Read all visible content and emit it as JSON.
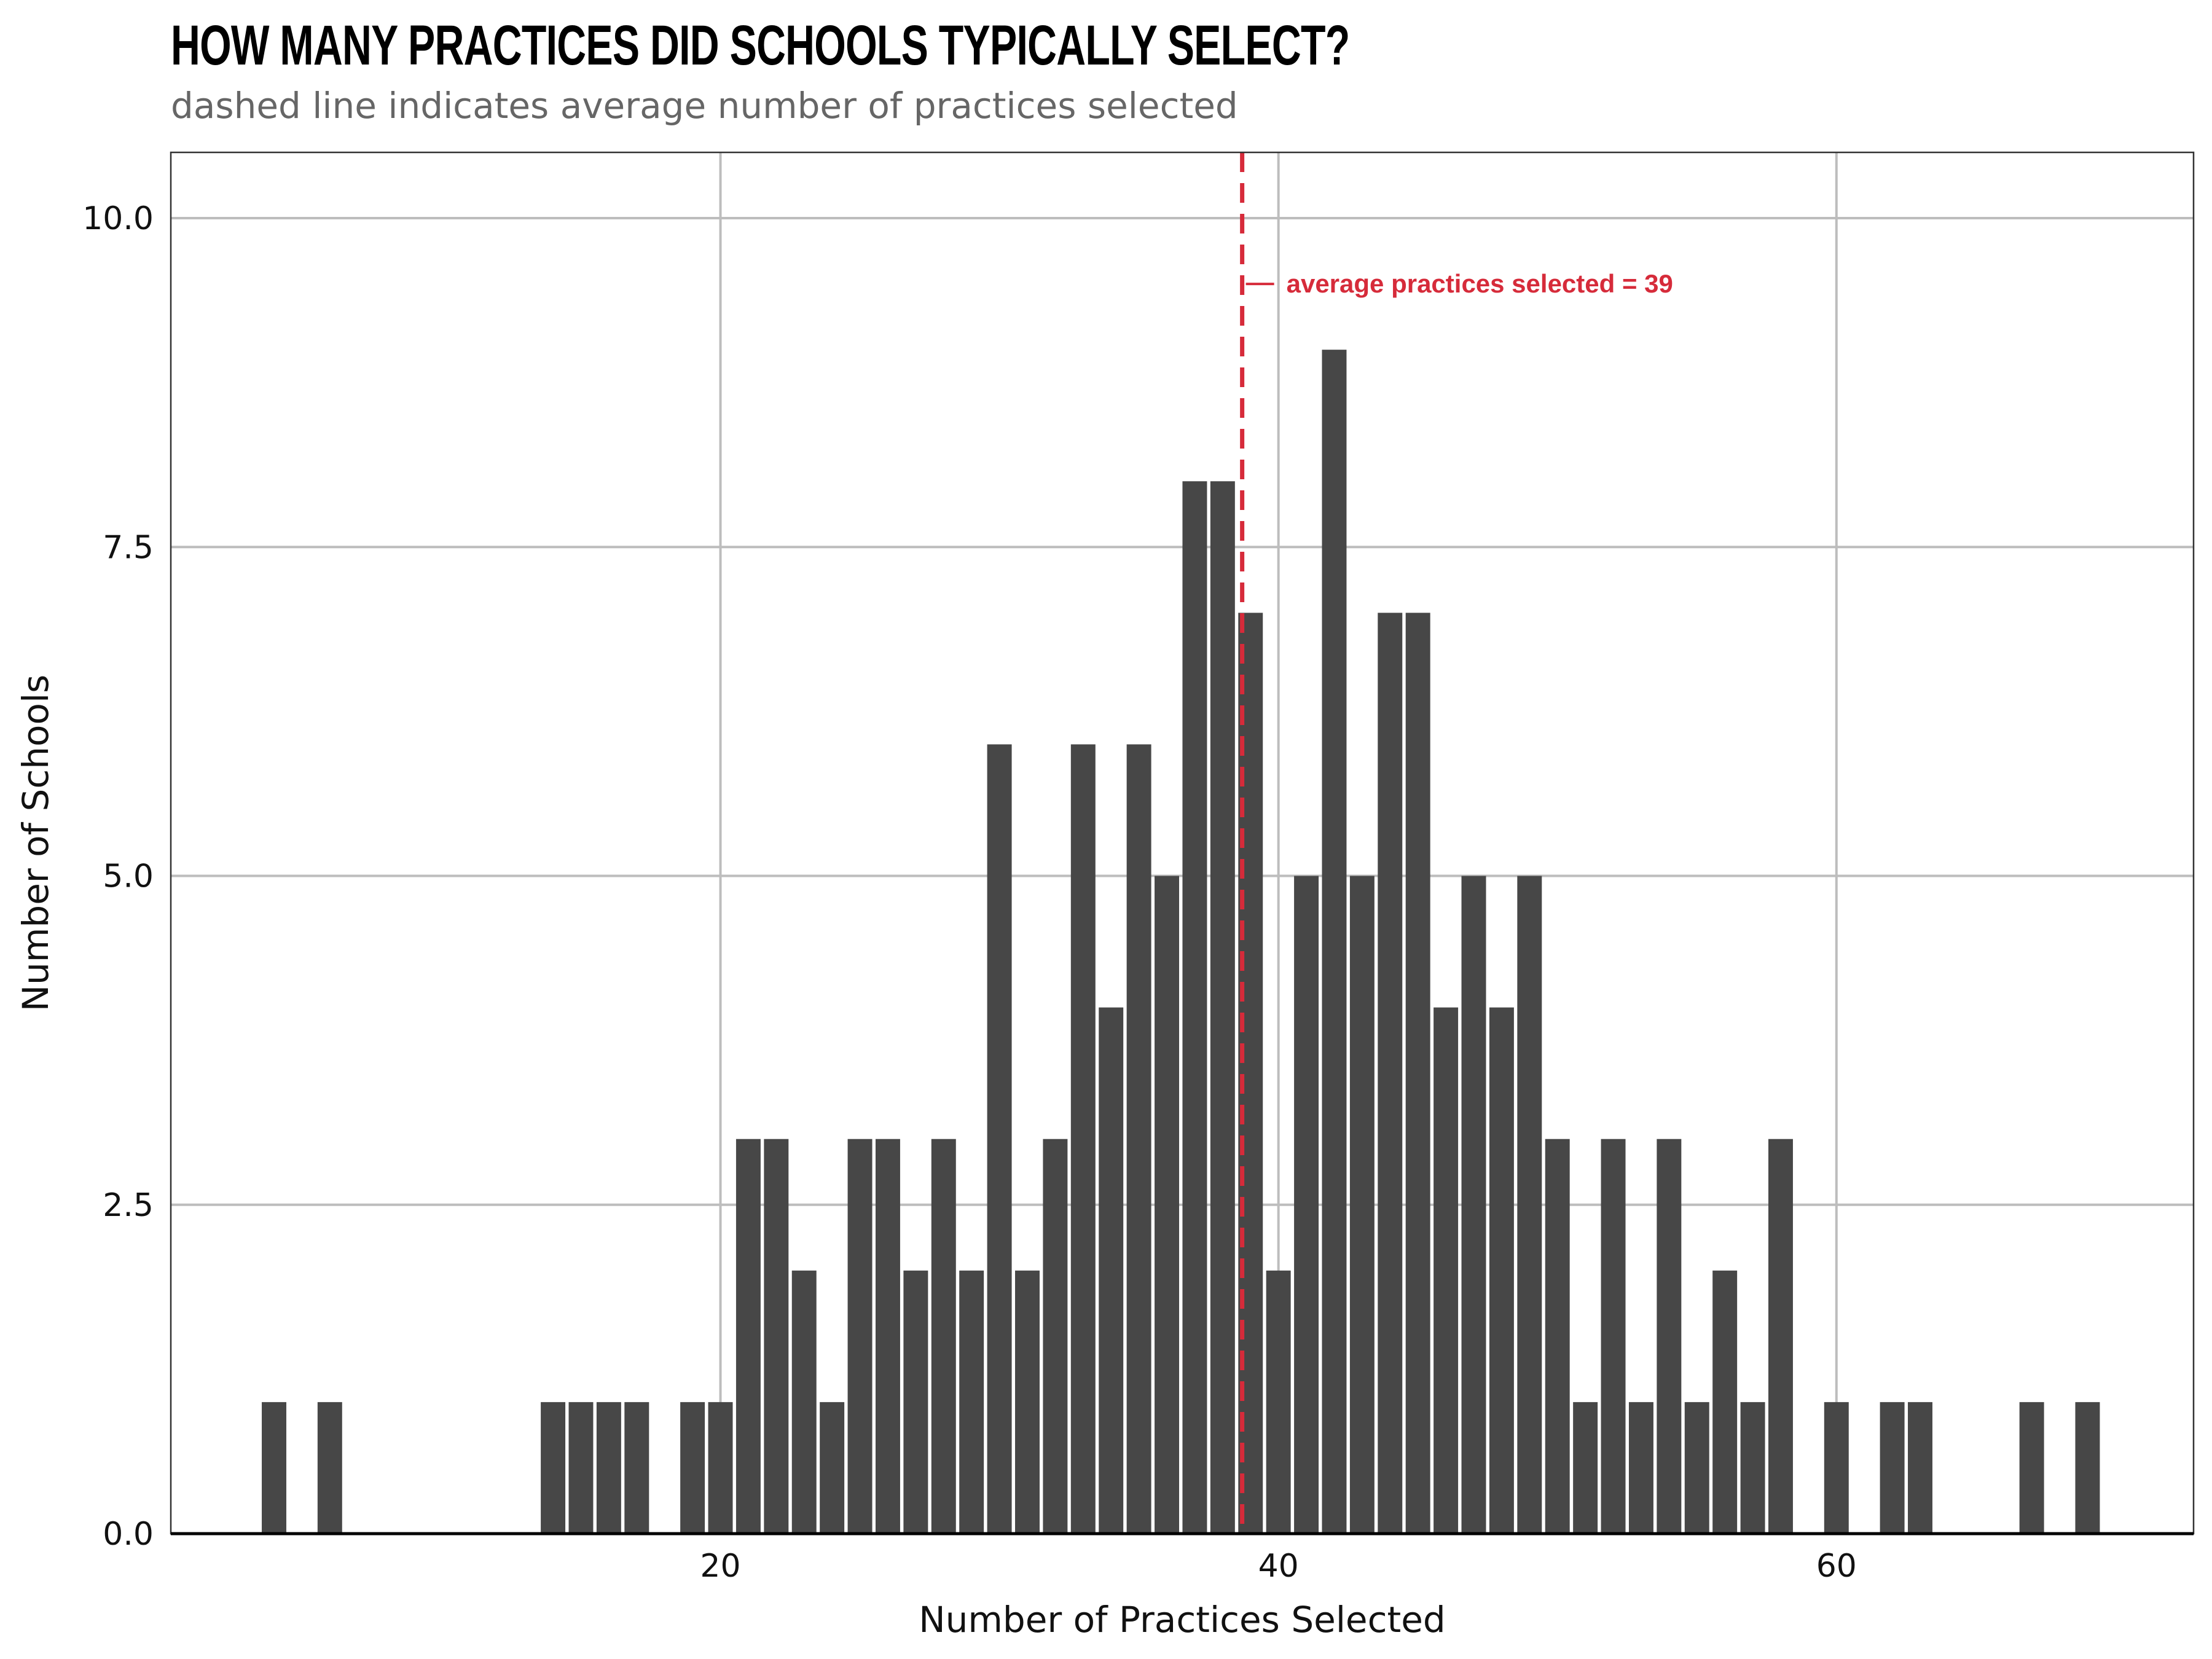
{
  "chart_data": {
    "type": "bar",
    "title": "HOW MANY PRACTICES DID SCHOOLS TYPICALLY SELECT?",
    "subtitle": "dashed line indicates average number of practices selected",
    "xlabel": "Number of Practices Selected",
    "ylabel": "Number of Schools",
    "xlim": [
      0.3,
      72.8
    ],
    "ylim": [
      0,
      10.5
    ],
    "x_ticks": [
      20,
      40,
      60
    ],
    "y_ticks": [
      0,
      2.5,
      5,
      7.5,
      10
    ],
    "y_tick_labels": [
      "0.0",
      "2.5",
      "5.0",
      "7.5",
      "10.0"
    ],
    "grid": true,
    "bar_color": "#474747",
    "series": [
      {
        "x": [
          4,
          6,
          14,
          15,
          16,
          17,
          19,
          20,
          21,
          22,
          23,
          24,
          25,
          26,
          27,
          28,
          29,
          30,
          31,
          32,
          33,
          34,
          35,
          36,
          37,
          38,
          39,
          40,
          41,
          42,
          43,
          44,
          45,
          46,
          47,
          48,
          49,
          50,
          51,
          52,
          53,
          54,
          55,
          56,
          57,
          58,
          60,
          62,
          63,
          67,
          69
        ],
        "values": [
          1,
          1,
          1,
          1,
          1,
          1,
          1,
          1,
          3,
          3,
          2,
          1,
          3,
          3,
          2,
          3,
          2,
          6,
          2,
          3,
          6,
          4,
          6,
          5,
          8,
          8,
          7,
          2,
          5,
          9,
          5,
          7,
          7,
          4,
          5,
          4,
          5,
          3,
          1,
          3,
          1,
          3,
          1,
          2,
          1,
          3,
          1,
          1,
          1,
          1,
          1
        ]
      }
    ],
    "reference_line": {
      "x": 38.7,
      "style": "dashed",
      "color": "#d62b3a",
      "label": "average practices selected = 39",
      "label_y": 9.5
    }
  }
}
